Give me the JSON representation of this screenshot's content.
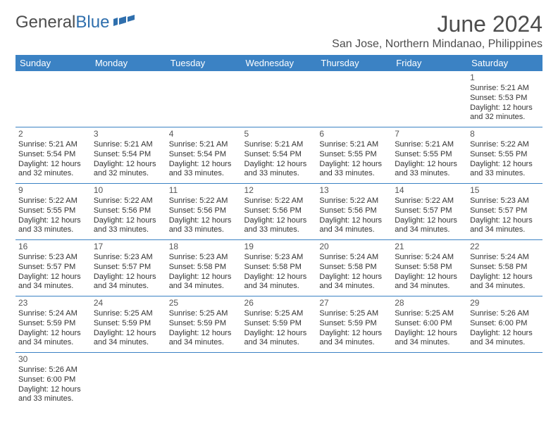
{
  "brand": {
    "part1": "General",
    "part2": "Blue"
  },
  "title": {
    "month": "June 2024",
    "location": "San Jose, Northern Mindanao, Philippines"
  },
  "colors": {
    "header_bg": "#3b82c4",
    "header_text": "#ffffff",
    "rule": "#3b82c4",
    "title_text": "#4d4d4d",
    "body_text": "#333333",
    "brand_gray": "#4d4d4d",
    "brand_blue": "#2f6fad",
    "background": "#ffffff"
  },
  "daynames": [
    "Sunday",
    "Monday",
    "Tuesday",
    "Wednesday",
    "Thursday",
    "Friday",
    "Saturday"
  ],
  "layout": {
    "type": "calendar-table",
    "first_day_index": 6,
    "columns": 7,
    "cell_fontsize": 11,
    "header_fontsize": 13,
    "month_fontsize": 32,
    "location_fontsize": 16
  },
  "days": [
    {
      "n": 1,
      "sunrise": "5:21 AM",
      "sunset": "5:53 PM",
      "daylight": "12 hours and 32 minutes."
    },
    {
      "n": 2,
      "sunrise": "5:21 AM",
      "sunset": "5:54 PM",
      "daylight": "12 hours and 32 minutes."
    },
    {
      "n": 3,
      "sunrise": "5:21 AM",
      "sunset": "5:54 PM",
      "daylight": "12 hours and 32 minutes."
    },
    {
      "n": 4,
      "sunrise": "5:21 AM",
      "sunset": "5:54 PM",
      "daylight": "12 hours and 33 minutes."
    },
    {
      "n": 5,
      "sunrise": "5:21 AM",
      "sunset": "5:54 PM",
      "daylight": "12 hours and 33 minutes."
    },
    {
      "n": 6,
      "sunrise": "5:21 AM",
      "sunset": "5:55 PM",
      "daylight": "12 hours and 33 minutes."
    },
    {
      "n": 7,
      "sunrise": "5:21 AM",
      "sunset": "5:55 PM",
      "daylight": "12 hours and 33 minutes."
    },
    {
      "n": 8,
      "sunrise": "5:22 AM",
      "sunset": "5:55 PM",
      "daylight": "12 hours and 33 minutes."
    },
    {
      "n": 9,
      "sunrise": "5:22 AM",
      "sunset": "5:55 PM",
      "daylight": "12 hours and 33 minutes."
    },
    {
      "n": 10,
      "sunrise": "5:22 AM",
      "sunset": "5:56 PM",
      "daylight": "12 hours and 33 minutes."
    },
    {
      "n": 11,
      "sunrise": "5:22 AM",
      "sunset": "5:56 PM",
      "daylight": "12 hours and 33 minutes."
    },
    {
      "n": 12,
      "sunrise": "5:22 AM",
      "sunset": "5:56 PM",
      "daylight": "12 hours and 33 minutes."
    },
    {
      "n": 13,
      "sunrise": "5:22 AM",
      "sunset": "5:56 PM",
      "daylight": "12 hours and 34 minutes."
    },
    {
      "n": 14,
      "sunrise": "5:22 AM",
      "sunset": "5:57 PM",
      "daylight": "12 hours and 34 minutes."
    },
    {
      "n": 15,
      "sunrise": "5:23 AM",
      "sunset": "5:57 PM",
      "daylight": "12 hours and 34 minutes."
    },
    {
      "n": 16,
      "sunrise": "5:23 AM",
      "sunset": "5:57 PM",
      "daylight": "12 hours and 34 minutes."
    },
    {
      "n": 17,
      "sunrise": "5:23 AM",
      "sunset": "5:57 PM",
      "daylight": "12 hours and 34 minutes."
    },
    {
      "n": 18,
      "sunrise": "5:23 AM",
      "sunset": "5:58 PM",
      "daylight": "12 hours and 34 minutes."
    },
    {
      "n": 19,
      "sunrise": "5:23 AM",
      "sunset": "5:58 PM",
      "daylight": "12 hours and 34 minutes."
    },
    {
      "n": 20,
      "sunrise": "5:24 AM",
      "sunset": "5:58 PM",
      "daylight": "12 hours and 34 minutes."
    },
    {
      "n": 21,
      "sunrise": "5:24 AM",
      "sunset": "5:58 PM",
      "daylight": "12 hours and 34 minutes."
    },
    {
      "n": 22,
      "sunrise": "5:24 AM",
      "sunset": "5:58 PM",
      "daylight": "12 hours and 34 minutes."
    },
    {
      "n": 23,
      "sunrise": "5:24 AM",
      "sunset": "5:59 PM",
      "daylight": "12 hours and 34 minutes."
    },
    {
      "n": 24,
      "sunrise": "5:25 AM",
      "sunset": "5:59 PM",
      "daylight": "12 hours and 34 minutes."
    },
    {
      "n": 25,
      "sunrise": "5:25 AM",
      "sunset": "5:59 PM",
      "daylight": "12 hours and 34 minutes."
    },
    {
      "n": 26,
      "sunrise": "5:25 AM",
      "sunset": "5:59 PM",
      "daylight": "12 hours and 34 minutes."
    },
    {
      "n": 27,
      "sunrise": "5:25 AM",
      "sunset": "5:59 PM",
      "daylight": "12 hours and 34 minutes."
    },
    {
      "n": 28,
      "sunrise": "5:25 AM",
      "sunset": "6:00 PM",
      "daylight": "12 hours and 34 minutes."
    },
    {
      "n": 29,
      "sunrise": "5:26 AM",
      "sunset": "6:00 PM",
      "daylight": "12 hours and 34 minutes."
    },
    {
      "n": 30,
      "sunrise": "5:26 AM",
      "sunset": "6:00 PM",
      "daylight": "12 hours and 33 minutes."
    }
  ],
  "labels": {
    "sunrise": "Sunrise:",
    "sunset": "Sunset:",
    "daylight": "Daylight:"
  }
}
